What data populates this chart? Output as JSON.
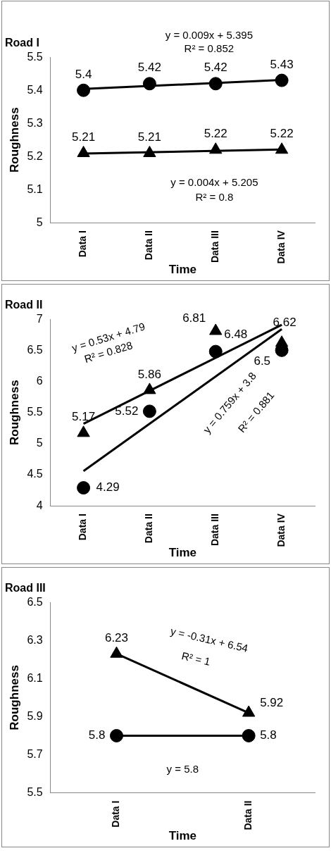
{
  "chart_data": [
    {
      "type": "scatter",
      "title": "Road I",
      "xlabel": "Time",
      "ylabel": "Roughness",
      "categories": [
        "Data I",
        "Data II",
        "Data III",
        "Data IV"
      ],
      "ylim": [
        5,
        5.5
      ],
      "yticks": [
        5,
        5.1,
        5.2,
        5.3,
        5.4,
        5.5
      ],
      "legend": false,
      "grid": false,
      "series": [
        {
          "type": "scatter",
          "marker": "circle",
          "color": "#000000",
          "values": [
            5.4,
            5.42,
            5.42,
            5.43
          ],
          "value_labels": [
            "5.4",
            "5.42",
            "5.42",
            "5.43"
          ]
        },
        {
          "type": "scatter",
          "marker": "triangle",
          "color": "#000000",
          "values": [
            5.21,
            5.21,
            5.22,
            5.22
          ],
          "value_labels": [
            "5.21",
            "5.21",
            "5.22",
            "5.22"
          ]
        },
        {
          "type": "line",
          "marker": "none",
          "color": "#000000",
          "x": [
            "Data I",
            "Data IV"
          ],
          "values": [
            5.404,
            5.431
          ]
        },
        {
          "type": "line",
          "marker": "none",
          "color": "#000000",
          "x": [
            "Data I",
            "Data IV"
          ],
          "values": [
            5.209,
            5.221
          ]
        }
      ],
      "annotations": [
        "y = 0.009x + 5.395",
        "R² = 0.852",
        "y = 0.004x + 5.205",
        "R² = 0.8"
      ]
    },
    {
      "type": "scatter",
      "title": "Road II",
      "xlabel": "Time",
      "ylabel": "Roughness",
      "categories": [
        "Data I",
        "Data II",
        "Data III",
        "Data IV"
      ],
      "ylim": [
        4,
        7
      ],
      "yticks": [
        4,
        4.5,
        5,
        5.5,
        6,
        6.5,
        7
      ],
      "legend": false,
      "grid": false,
      "series": [
        {
          "type": "scatter",
          "marker": "circle",
          "color": "#000000",
          "values": [
            4.29,
            5.52,
            6.48,
            6.5
          ],
          "value_labels": [
            "4.29",
            "5.52",
            "6.48",
            "6.5"
          ]
        },
        {
          "type": "scatter",
          "marker": "triangle",
          "color": "#000000",
          "values": [
            5.17,
            5.86,
            6.81,
            6.62
          ],
          "value_labels": [
            "5.17",
            "5.86",
            "6.81",
            "6.62"
          ]
        },
        {
          "type": "line",
          "marker": "none",
          "color": "#000000",
          "x": [
            "Data I",
            "Data IV"
          ],
          "values": [
            4.56,
            6.84
          ]
        },
        {
          "type": "line",
          "marker": "none",
          "color": "#000000",
          "x": [
            "Data I",
            "Data IV"
          ],
          "values": [
            5.32,
            6.91
          ]
        }
      ],
      "annotations": [
        "y = 0.53x + 4.79",
        "R² = 0.828",
        "y = 0.759x + 3.8",
        "R² = 0.881"
      ]
    },
    {
      "type": "scatter",
      "title": "Road III",
      "xlabel": "Time",
      "ylabel": "Roughness",
      "categories": [
        "Data I",
        "Data II"
      ],
      "ylim": [
        5.5,
        6.5
      ],
      "yticks": [
        {
          "value": 5.5,
          "label": "5.5"
        },
        5.7,
        5.9,
        6.1,
        6.3,
        {
          "value": 6.5,
          "label": "6.5"
        }
      ],
      "legend": false,
      "grid": false,
      "series": [
        {
          "type": "scatter",
          "marker": "circle",
          "color": "#000000",
          "values": [
            5.8,
            5.8
          ],
          "value_labels": [
            "5.8",
            "5.8"
          ]
        },
        {
          "type": "scatter",
          "marker": "triangle",
          "color": "#000000",
          "values": [
            6.23,
            5.92
          ],
          "value_labels": [
            "6.23",
            "5.92"
          ]
        },
        {
          "type": "line",
          "marker": "none",
          "color": "#000000",
          "x": [
            "Data I",
            "Data II"
          ],
          "values": [
            5.8,
            5.8
          ]
        },
        {
          "type": "line",
          "marker": "none",
          "color": "#000000",
          "x": [
            "Data I",
            "Data II"
          ],
          "values": [
            6.23,
            5.92
          ]
        }
      ],
      "annotations": [
        "y = -0.31x + 6.54",
        "R² = 1",
        "y = 5.8"
      ]
    }
  ]
}
